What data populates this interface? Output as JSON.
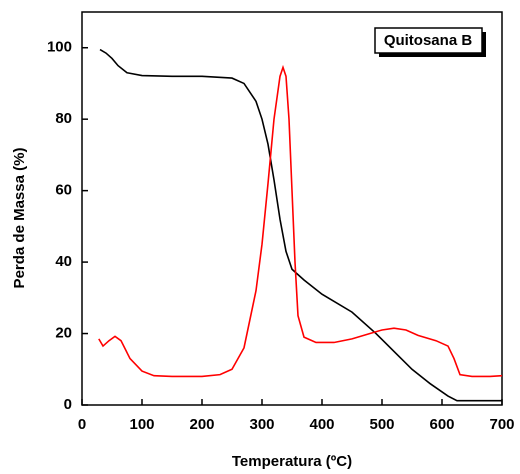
{
  "chart_data": {
    "type": "line",
    "xlabel": "Temperatura (ºC)",
    "ylabel": "Perda de Massa (%)",
    "annotation": "Quitosana B",
    "xlim": [
      0,
      700
    ],
    "xticks": [
      0,
      100,
      200,
      300,
      400,
      500,
      600,
      700
    ],
    "ylim": [
      0,
      110
    ],
    "yticks": [
      0,
      20,
      40,
      60,
      80,
      100
    ],
    "series": [
      {
        "color": "#000000",
        "x": [
          30,
          40,
          50,
          60,
          75,
          100,
          150,
          200,
          250,
          270,
          290,
          300,
          310,
          320,
          330,
          340,
          350,
          370,
          400,
          450,
          490,
          520,
          550,
          580,
          610,
          625,
          650,
          700
        ],
        "values": [
          99.5,
          98.5,
          97,
          95,
          93,
          92.2,
          92,
          92,
          91.5,
          90,
          85,
          80,
          73,
          63,
          52,
          43,
          38,
          35,
          31,
          26,
          20,
          15,
          10,
          6,
          2.5,
          1.2,
          1.2,
          1.2
        ]
      },
      {
        "color": "#ff0000",
        "x": [
          28,
          35,
          45,
          55,
          65,
          80,
          100,
          120,
          150,
          200,
          230,
          250,
          270,
          290,
          300,
          310,
          320,
          330,
          335,
          340,
          345,
          350,
          355,
          360,
          370,
          390,
          420,
          450,
          480,
          500,
          520,
          540,
          560,
          590,
          610,
          620,
          630,
          650,
          680,
          700
        ],
        "values": [
          18.5,
          16.5,
          18,
          19.2,
          18,
          13,
          9.5,
          8.2,
          8,
          8,
          8.5,
          10,
          16,
          32,
          45,
          62,
          80,
          92,
          94.5,
          92,
          80,
          60,
          40,
          25,
          19,
          17.5,
          17.5,
          18.5,
          20,
          21,
          21.5,
          21,
          19.5,
          18,
          16.5,
          13,
          8.5,
          8,
          8,
          8.2
        ]
      }
    ]
  }
}
